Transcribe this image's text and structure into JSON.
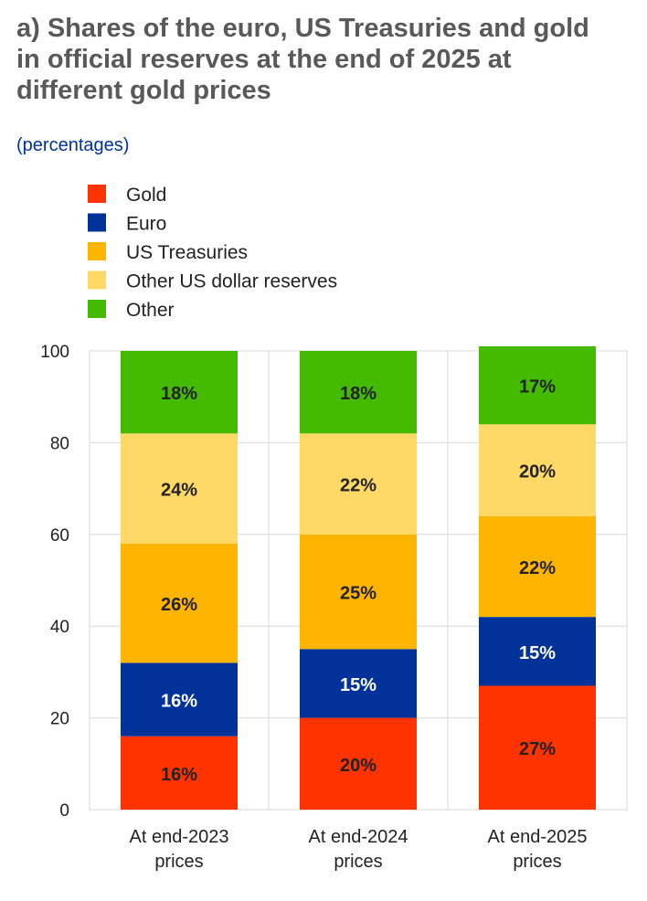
{
  "title_lines": [
    "a) Shares of the euro, US Treasuries and gold",
    "in official reserves at the end of 2025 at",
    "different gold prices"
  ],
  "subtitle": "(percentages)",
  "chart_data": {
    "type": "bar",
    "stacked": true,
    "categories": [
      [
        "At end-2023",
        "prices"
      ],
      [
        "At end-2024",
        "prices"
      ],
      [
        "At end-2025",
        "prices"
      ]
    ],
    "ylim": [
      0,
      100
    ],
    "yticks": [
      0,
      20,
      40,
      60,
      80,
      100
    ],
    "grid": true,
    "legend_position": "top-left",
    "series": [
      {
        "name": "Gold",
        "color": "#FF3300",
        "label_color": "#222222",
        "values": [
          16,
          20,
          27
        ],
        "labels": [
          "16%",
          "20%",
          "27%"
        ]
      },
      {
        "name": "Euro",
        "color": "#003299",
        "label_color": "#ffffff",
        "values": [
          16,
          15,
          15
        ],
        "labels": [
          "16%",
          "15%",
          "15%"
        ]
      },
      {
        "name": "US Treasuries",
        "color": "#FFB400",
        "label_color": "#222222",
        "values": [
          26,
          25,
          22
        ],
        "labels": [
          "26%",
          "25%",
          "22%"
        ]
      },
      {
        "name": "Other US dollar reserves",
        "color": "#FFD966",
        "label_color": "#222222",
        "values": [
          24,
          22,
          20
        ],
        "labels": [
          "24%",
          "22%",
          "20%"
        ]
      },
      {
        "name": "Other",
        "color": "#44BB00",
        "label_color": "#222222",
        "values": [
          18,
          18,
          17
        ],
        "labels": [
          "18%",
          "18%",
          "17%"
        ]
      }
    ]
  }
}
